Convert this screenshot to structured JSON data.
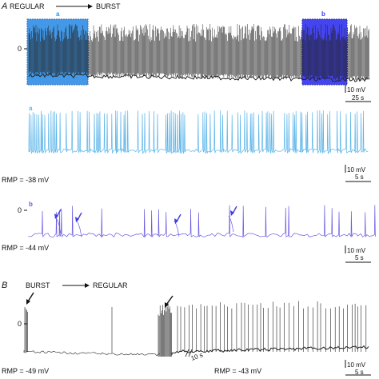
{
  "panel_a": {
    "letter": "A",
    "transition_from": "REGULAR",
    "transition_to": "BURST",
    "zero_label": "0",
    "box_a_label": "a",
    "box_b_label": "b",
    "scale_v": "10 mV",
    "scale_t": "25 s"
  },
  "trace_a": {
    "label": "a",
    "rmp": "RMP = -38 mV",
    "scale_v": "10 mV",
    "scale_t": "5 s"
  },
  "trace_b": {
    "label": "b",
    "rmp": "RMP = -44 mV",
    "zero_label": "0",
    "scale_v": "10 mV",
    "scale_t": "5 s"
  },
  "panel_b": {
    "letter": "B",
    "transition_from": "BURST",
    "transition_to": "REGULAR",
    "zero_label": "0",
    "rmp_left": "RMP = -49 mV",
    "rmp_right": "RMP = -43 mV",
    "gap_label": "10 s",
    "scale_v": "10 mV",
    "scale_t": "5 s"
  },
  "colors": {
    "trace_black": "#222222",
    "trace_light_blue": "#5ab4e8",
    "trace_purple": "#6a5ae0",
    "box_a_fill": "#2f8fe6",
    "box_b_fill": "#3c3cf0",
    "arrow_blue": "#4040e0"
  }
}
